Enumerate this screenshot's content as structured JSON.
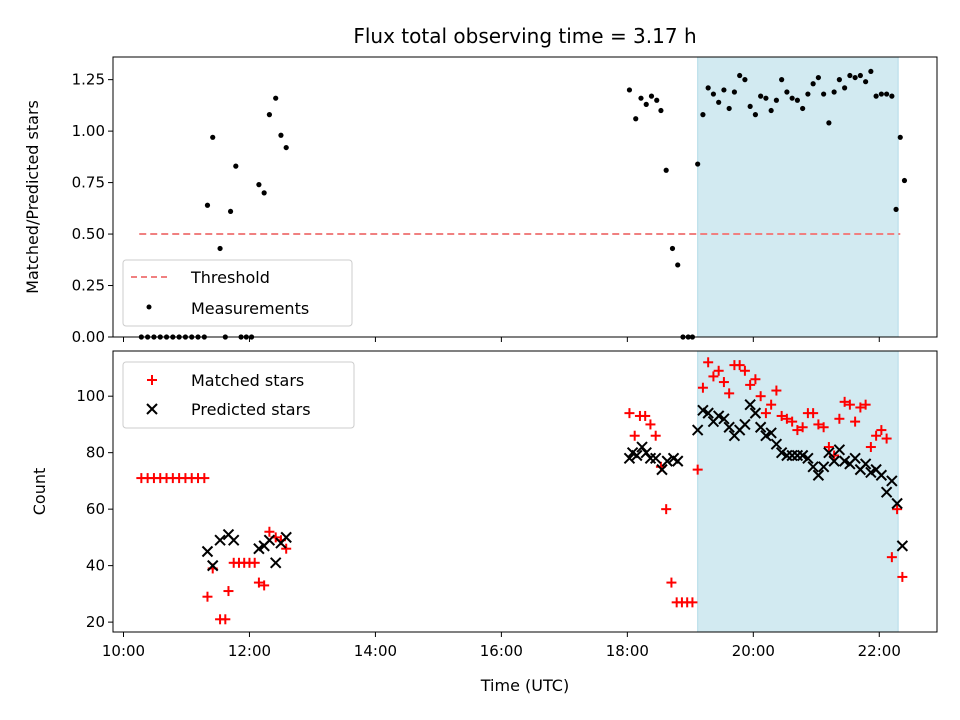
{
  "chart_data": [
    {
      "type": "scatter",
      "title": "Flux total observing time = 3.17 h",
      "xlabel": "",
      "ylabel": "Matched/Predicted stars",
      "xlim": [
        "09:50",
        "22:55"
      ],
      "ylim": [
        0,
        1.36
      ],
      "yticks": [
        "0.00",
        "0.25",
        "0.50",
        "0.75",
        "1.00",
        "1.25"
      ],
      "shaded_span": [
        "19:07",
        "22:18"
      ],
      "shade_color": "#add8e6",
      "legend_position": "lower-left",
      "threshold": {
        "name": "Threshold",
        "value": 0.5,
        "x_range": [
          "10:15",
          "22:20"
        ],
        "color": "#f08080"
      },
      "series": [
        {
          "name": "Measurements",
          "color": "#000000",
          "marker": "dot",
          "points": [
            [
              "10:17",
              0
            ],
            [
              "10:23",
              0
            ],
            [
              "10:29",
              0
            ],
            [
              "10:35",
              0
            ],
            [
              "10:41",
              0
            ],
            [
              "10:47",
              0
            ],
            [
              "10:53",
              0
            ],
            [
              "10:59",
              0
            ],
            [
              "11:05",
              0
            ],
            [
              "11:11",
              0
            ],
            [
              "11:17",
              0
            ],
            [
              "11:20",
              0.64
            ],
            [
              "11:25",
              0.97
            ],
            [
              "11:32",
              0.43
            ],
            [
              "11:37",
              0
            ],
            [
              "11:42",
              0.61
            ],
            [
              "11:47",
              0.83
            ],
            [
              "11:52",
              0
            ],
            [
              "11:57",
              0
            ],
            [
              "12:02",
              0
            ],
            [
              "12:09",
              0.74
            ],
            [
              "12:14",
              0.7
            ],
            [
              "12:19",
              1.08
            ],
            [
              "12:25",
              1.16
            ],
            [
              "12:30",
              0.98
            ],
            [
              "12:35",
              0.92
            ],
            [
              "18:02",
              1.2
            ],
            [
              "18:08",
              1.06
            ],
            [
              "18:13",
              1.16
            ],
            [
              "18:18",
              1.13
            ],
            [
              "18:23",
              1.17
            ],
            [
              "18:28",
              1.15
            ],
            [
              "18:32",
              1.1
            ],
            [
              "18:37",
              0.81
            ],
            [
              "18:43",
              0.43
            ],
            [
              "18:48",
              0.35
            ],
            [
              "18:53",
              0
            ],
            [
              "18:58",
              0
            ],
            [
              "19:02",
              0
            ],
            [
              "19:07",
              0.84
            ],
            [
              "19:12",
              1.08
            ],
            [
              "19:17",
              1.21
            ],
            [
              "19:22",
              1.18
            ],
            [
              "19:27",
              1.14
            ],
            [
              "19:32",
              1.2
            ],
            [
              "19:37",
              1.11
            ],
            [
              "19:42",
              1.19
            ],
            [
              "19:47",
              1.27
            ],
            [
              "19:52",
              1.25
            ],
            [
              "19:57",
              1.12
            ],
            [
              "20:02",
              1.08
            ],
            [
              "20:07",
              1.17
            ],
            [
              "20:12",
              1.16
            ],
            [
              "20:17",
              1.1
            ],
            [
              "20:22",
              1.15
            ],
            [
              "20:27",
              1.25
            ],
            [
              "20:32",
              1.19
            ],
            [
              "20:37",
              1.16
            ],
            [
              "20:42",
              1.15
            ],
            [
              "20:47",
              1.11
            ],
            [
              "20:52",
              1.18
            ],
            [
              "20:57",
              1.23
            ],
            [
              "21:02",
              1.26
            ],
            [
              "21:07",
              1.18
            ],
            [
              "21:12",
              1.04
            ],
            [
              "21:17",
              1.19
            ],
            [
              "21:22",
              1.25
            ],
            [
              "21:27",
              1.21
            ],
            [
              "21:32",
              1.27
            ],
            [
              "21:37",
              1.26
            ],
            [
              "21:42",
              1.27
            ],
            [
              "21:47",
              1.24
            ],
            [
              "21:52",
              1.29
            ],
            [
              "21:57",
              1.17
            ],
            [
              "22:02",
              1.18
            ],
            [
              "22:07",
              1.18
            ],
            [
              "22:12",
              1.17
            ],
            [
              "22:16",
              0.62
            ],
            [
              "22:20",
              0.97
            ],
            [
              "22:24",
              0.76
            ]
          ]
        }
      ]
    },
    {
      "type": "scatter",
      "title": "",
      "xlabel": "Time (UTC)",
      "ylabel": "Count",
      "xlim": [
        "09:50",
        "22:55"
      ],
      "ylim": [
        16.5,
        116
      ],
      "xticks": [
        "10:00",
        "12:00",
        "14:00",
        "16:00",
        "18:00",
        "20:00",
        "22:00"
      ],
      "yticks": [
        "20",
        "40",
        "60",
        "80",
        "100"
      ],
      "shaded_span": [
        "19:07",
        "22:18"
      ],
      "shade_color": "#add8e6",
      "legend_position": "upper-left",
      "series": [
        {
          "name": "Matched stars",
          "color": "#ff0000",
          "marker": "plus",
          "points": [
            [
              "10:17",
              71
            ],
            [
              "10:23",
              71
            ],
            [
              "10:29",
              71
            ],
            [
              "10:35",
              71
            ],
            [
              "10:41",
              71
            ],
            [
              "10:47",
              71
            ],
            [
              "10:53",
              71
            ],
            [
              "10:59",
              71
            ],
            [
              "11:05",
              71
            ],
            [
              "11:11",
              71
            ],
            [
              "11:17",
              71
            ],
            [
              "11:20",
              29
            ],
            [
              "11:25",
              39
            ],
            [
              "11:32",
              21
            ],
            [
              "11:37",
              21
            ],
            [
              "11:40",
              31
            ],
            [
              "11:45",
              41
            ],
            [
              "11:50",
              41
            ],
            [
              "11:55",
              41
            ],
            [
              "12:00",
              41
            ],
            [
              "12:05",
              41
            ],
            [
              "12:09",
              34
            ],
            [
              "12:14",
              33
            ],
            [
              "12:19",
              52
            ],
            [
              "12:25",
              50
            ],
            [
              "12:30",
              49
            ],
            [
              "12:35",
              46
            ],
            [
              "18:02",
              94
            ],
            [
              "18:07",
              86
            ],
            [
              "18:12",
              93
            ],
            [
              "18:17",
              93
            ],
            [
              "18:22",
              90
            ],
            [
              "18:27",
              86
            ],
            [
              "18:32",
              75
            ],
            [
              "18:37",
              60
            ],
            [
              "18:42",
              34
            ],
            [
              "18:47",
              27
            ],
            [
              "18:52",
              27
            ],
            [
              "18:57",
              27
            ],
            [
              "19:02",
              27
            ],
            [
              "19:07",
              74
            ],
            [
              "19:12",
              103
            ],
            [
              "19:17",
              112
            ],
            [
              "19:22",
              107
            ],
            [
              "19:27",
              109
            ],
            [
              "19:32",
              105
            ],
            [
              "19:37",
              101
            ],
            [
              "19:42",
              111
            ],
            [
              "19:47",
              111
            ],
            [
              "19:52",
              109
            ],
            [
              "19:57",
              104
            ],
            [
              "20:02",
              106
            ],
            [
              "20:07",
              100
            ],
            [
              "20:12",
              94
            ],
            [
              "20:17",
              97
            ],
            [
              "20:22",
              102
            ],
            [
              "20:27",
              93
            ],
            [
              "20:32",
              92
            ],
            [
              "20:37",
              91
            ],
            [
              "20:42",
              88
            ],
            [
              "20:47",
              89
            ],
            [
              "20:52",
              94
            ],
            [
              "20:57",
              94
            ],
            [
              "21:02",
              90
            ],
            [
              "21:07",
              89
            ],
            [
              "21:12",
              82
            ],
            [
              "21:17",
              79
            ],
            [
              "21:22",
              92
            ],
            [
              "21:27",
              98
            ],
            [
              "21:32",
              97
            ],
            [
              "21:37",
              91
            ],
            [
              "21:42",
              96
            ],
            [
              "21:47",
              97
            ],
            [
              "21:52",
              82
            ],
            [
              "21:57",
              86
            ],
            [
              "22:02",
              88
            ],
            [
              "22:07",
              85
            ],
            [
              "22:12",
              43
            ],
            [
              "22:17",
              60
            ],
            [
              "22:22",
              36
            ]
          ]
        },
        {
          "name": "Predicted stars",
          "color": "#000000",
          "marker": "x",
          "points": [
            [
              "11:20",
              45
            ],
            [
              "11:25",
              40
            ],
            [
              "11:32",
              49
            ],
            [
              "11:40",
              51
            ],
            [
              "11:45",
              49
            ],
            [
              "12:09",
              46
            ],
            [
              "12:14",
              47
            ],
            [
              "12:19",
              49
            ],
            [
              "12:25",
              41
            ],
            [
              "12:30",
              48
            ],
            [
              "12:35",
              50
            ],
            [
              "18:02",
              78
            ],
            [
              "18:05",
              80
            ],
            [
              "18:09",
              79
            ],
            [
              "18:14",
              82
            ],
            [
              "18:18",
              80
            ],
            [
              "18:22",
              78
            ],
            [
              "18:27",
              78
            ],
            [
              "18:33",
              74
            ],
            [
              "18:38",
              77
            ],
            [
              "18:44",
              78
            ],
            [
              "18:48",
              77
            ],
            [
              "19:07",
              88
            ],
            [
              "19:12",
              95
            ],
            [
              "19:17",
              94
            ],
            [
              "19:22",
              91
            ],
            [
              "19:27",
              93
            ],
            [
              "19:32",
              92
            ],
            [
              "19:37",
              89
            ],
            [
              "19:42",
              86
            ],
            [
              "19:47",
              88
            ],
            [
              "19:52",
              90
            ],
            [
              "19:57",
              97
            ],
            [
              "20:02",
              94
            ],
            [
              "20:07",
              89
            ],
            [
              "20:12",
              86
            ],
            [
              "20:17",
              87
            ],
            [
              "20:22",
              83
            ],
            [
              "20:27",
              80
            ],
            [
              "20:32",
              79
            ],
            [
              "20:37",
              79
            ],
            [
              "20:42",
              79
            ],
            [
              "20:47",
              79
            ],
            [
              "20:52",
              78
            ],
            [
              "20:57",
              75
            ],
            [
              "21:02",
              72
            ],
            [
              "21:07",
              75
            ],
            [
              "21:12",
              80
            ],
            [
              "21:17",
              77
            ],
            [
              "21:22",
              81
            ],
            [
              "21:27",
              77
            ],
            [
              "21:32",
              76
            ],
            [
              "21:37",
              78
            ],
            [
              "21:42",
              74
            ],
            [
              "21:47",
              76
            ],
            [
              "21:52",
              73
            ],
            [
              "21:57",
              74
            ],
            [
              "22:02",
              72
            ],
            [
              "22:07",
              66
            ],
            [
              "22:12",
              70
            ],
            [
              "22:17",
              62
            ],
            [
              "22:22",
              47
            ]
          ]
        }
      ]
    }
  ]
}
